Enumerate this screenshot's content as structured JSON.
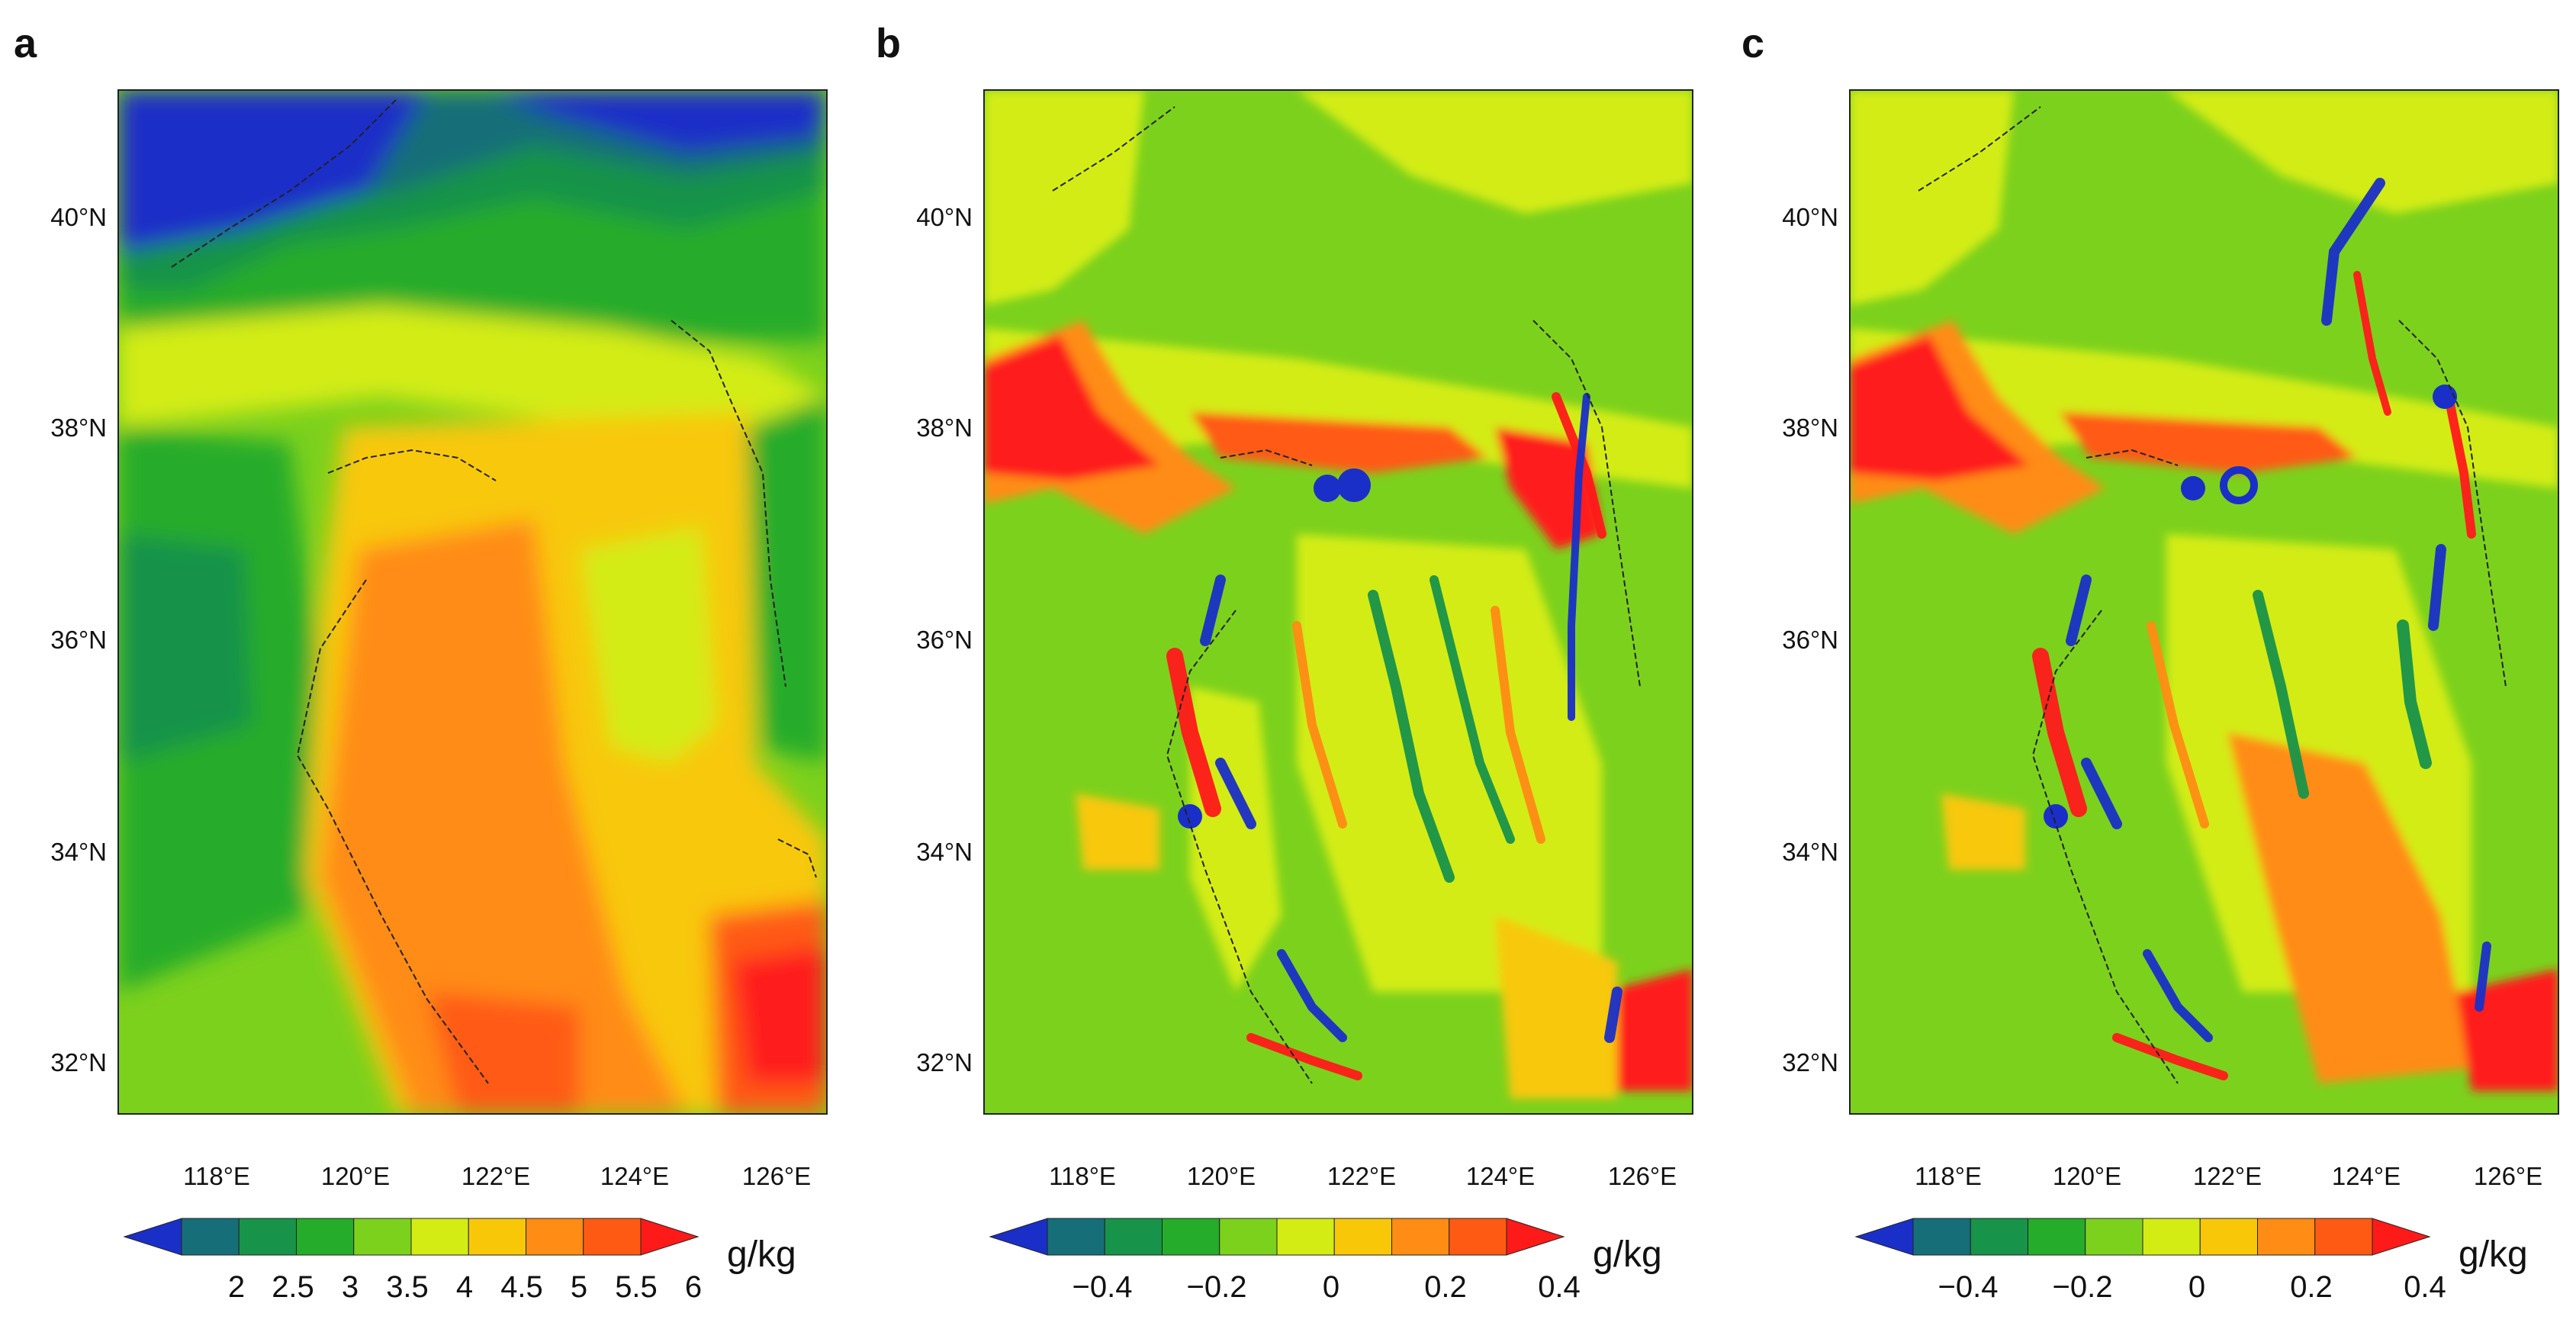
{
  "panels": [
    {
      "label": "a",
      "unit": "g/kg",
      "colorbar_labels": [
        "2",
        "2.5",
        "3",
        "3.5",
        "4",
        "4.5",
        "5",
        "5.5",
        "6"
      ],
      "colorbar_colors": [
        "#1a2fc8",
        "#156e78",
        "#18934a",
        "#25ac2a",
        "#7cd11d",
        "#d3ec14",
        "#f8c808",
        "#ff8c14",
        "#ff5a14",
        "#ff1a1a"
      ]
    },
    {
      "label": "b",
      "unit": "g/kg",
      "colorbar_labels": [
        "−0.4",
        "−0.2",
        "0",
        "0.2",
        "0.4"
      ],
      "colorbar_colors": [
        "#1a2fc8",
        "#156e78",
        "#18934a",
        "#25ac2a",
        "#7cd11d",
        "#d3ec14",
        "#f8c808",
        "#ff8c14",
        "#ff5a14",
        "#ff1a1a"
      ]
    },
    {
      "label": "c",
      "unit": "g/kg",
      "colorbar_labels": [
        "−0.4",
        "−0.2",
        "0",
        "0.2",
        "0.4"
      ],
      "colorbar_colors": [
        "#1a2fc8",
        "#156e78",
        "#18934a",
        "#25ac2a",
        "#7cd11d",
        "#d3ec14",
        "#f8c808",
        "#ff8c14",
        "#ff5a14",
        "#ff1a1a"
      ]
    }
  ],
  "axes": {
    "lat_labels": [
      "40°N",
      "38°N",
      "36°N",
      "34°N",
      "32°N"
    ],
    "lon_labels": [
      "118°E",
      "120°E",
      "122°E",
      "124°E",
      "126°E"
    ]
  }
}
